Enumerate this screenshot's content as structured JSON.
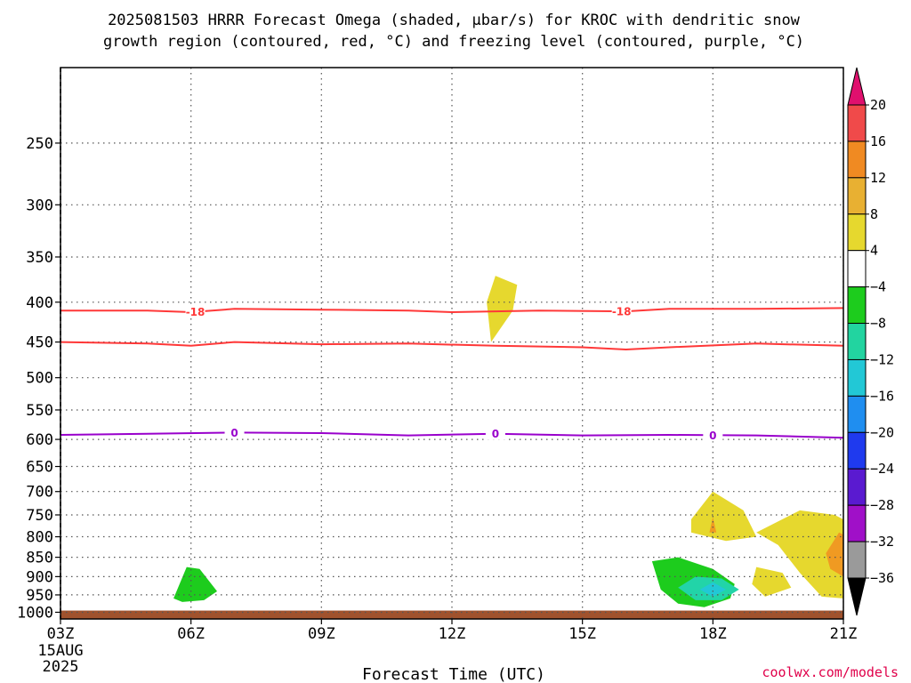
{
  "title": {
    "line1": "2025081503 HRRR Forecast Omega (shaded, μbar/s) for KROC with dendritic snow",
    "line2": "growth region (contoured, red, °C) and freezing level (contoured, purple, °C)"
  },
  "credit": "coolwx.com/models",
  "chart_data": {
    "type": "time-height",
    "title": "2025081503 HRRR Forecast Omega (shaded, μbar/s) for KROC with dendritic snow growth region (contoured, red, °C) and freezing level (contoured, purple, °C)",
    "xlabel": "Forecast Time (UTC)",
    "ylabel": "",
    "x_ticks": [
      {
        "hour": 3,
        "label": "03Z"
      },
      {
        "hour": 6,
        "label": "06Z"
      },
      {
        "hour": 9,
        "label": "09Z"
      },
      {
        "hour": 12,
        "label": "12Z"
      },
      {
        "hour": 15,
        "label": "15Z"
      },
      {
        "hour": 18,
        "label": "18Z"
      },
      {
        "hour": 21,
        "label": "21Z"
      }
    ],
    "x_date_label": [
      "15AUG",
      "2025"
    ],
    "xlim": [
      3,
      21
    ],
    "y_ticks": [
      250,
      300,
      350,
      400,
      450,
      500,
      550,
      600,
      650,
      700,
      750,
      800,
      850,
      900,
      950,
      1000
    ],
    "ylim_hpa": [
      1020,
      200
    ],
    "y_scale": "log-pressure",
    "grid": true,
    "contours": [
      {
        "name": "dendritic -18",
        "color": "#ff3838",
        "label": "-18",
        "label_hours": [
          6.1,
          15.9
        ],
        "points": [
          [
            3,
            410
          ],
          [
            5,
            410
          ],
          [
            6,
            412
          ],
          [
            7,
            408
          ],
          [
            9,
            409
          ],
          [
            11,
            410
          ],
          [
            12,
            412
          ],
          [
            14,
            410
          ],
          [
            16,
            411
          ],
          [
            17,
            408
          ],
          [
            19,
            408
          ],
          [
            21,
            407
          ]
        ]
      },
      {
        "name": "dendritic -12",
        "color": "#ff3838",
        "label": "",
        "label_hours": [],
        "points": [
          [
            3,
            450
          ],
          [
            5,
            452
          ],
          [
            6,
            455
          ],
          [
            7,
            450
          ],
          [
            9,
            453
          ],
          [
            11,
            452
          ],
          [
            13,
            455
          ],
          [
            15,
            457
          ],
          [
            16,
            460
          ],
          [
            17,
            457
          ],
          [
            19,
            452
          ],
          [
            21,
            455
          ]
        ]
      },
      {
        "name": "freezing level 0",
        "color": "#9900cc",
        "label": "0",
        "label_hours": [
          7,
          13,
          18
        ],
        "points": [
          [
            3,
            592
          ],
          [
            5,
            590
          ],
          [
            7,
            588
          ],
          [
            9,
            589
          ],
          [
            11,
            593
          ],
          [
            13,
            590
          ],
          [
            15,
            593
          ],
          [
            17,
            592
          ],
          [
            19,
            593
          ],
          [
            21,
            597
          ]
        ]
      }
    ],
    "omega_regions": [
      {
        "color": "#e6d82e",
        "points": [
          [
            13.0,
            370
          ],
          [
            13.5,
            380
          ],
          [
            13.4,
            410
          ],
          [
            12.9,
            450
          ],
          [
            12.8,
            400
          ]
        ]
      },
      {
        "color": "#e6d82e",
        "points": [
          [
            17.5,
            760
          ],
          [
            18.0,
            700
          ],
          [
            18.7,
            740
          ],
          [
            19.0,
            800
          ],
          [
            18.3,
            810
          ],
          [
            17.5,
            790
          ]
        ]
      },
      {
        "color": "#f09a22",
        "points": [
          [
            18.0,
            755
          ],
          [
            18.08,
            790
          ],
          [
            17.92,
            790
          ]
        ]
      },
      {
        "color": "#e6d82e",
        "points": [
          [
            19.0,
            790
          ],
          [
            20.0,
            740
          ],
          [
            20.8,
            750
          ],
          [
            21,
            760
          ],
          [
            21,
            960
          ],
          [
            20.5,
            955
          ],
          [
            20.0,
            890
          ],
          [
            19.5,
            820
          ]
        ]
      },
      {
        "color": "#f09a22",
        "points": [
          [
            20.6,
            840
          ],
          [
            20.9,
            790
          ],
          [
            21,
            795
          ],
          [
            21,
            900
          ],
          [
            20.7,
            880
          ]
        ]
      },
      {
        "color": "#e6d82e",
        "points": [
          [
            19.0,
            875
          ],
          [
            19.6,
            890
          ],
          [
            19.8,
            930
          ],
          [
            19.2,
            955
          ],
          [
            18.9,
            920
          ]
        ]
      },
      {
        "color": "#1dcc1d",
        "points": [
          [
            5.6,
            960
          ],
          [
            5.9,
            875
          ],
          [
            6.2,
            880
          ],
          [
            6.6,
            940
          ],
          [
            6.3,
            965
          ],
          [
            5.8,
            970
          ]
        ]
      },
      {
        "color": "#1dcc1d",
        "points": [
          [
            16.6,
            860
          ],
          [
            17.2,
            850
          ],
          [
            18.0,
            880
          ],
          [
            18.5,
            920
          ],
          [
            18.4,
            960
          ],
          [
            17.8,
            985
          ],
          [
            17.2,
            975
          ],
          [
            16.8,
            935
          ]
        ]
      },
      {
        "color": "#22d4a8",
        "points": [
          [
            17.2,
            930
          ],
          [
            17.6,
            900
          ],
          [
            18.2,
            905
          ],
          [
            18.6,
            935
          ],
          [
            18.2,
            965
          ],
          [
            17.6,
            965
          ]
        ]
      },
      {
        "color": "#22c8d6",
        "points": [
          [
            17.7,
            935
          ],
          [
            18.0,
            915
          ],
          [
            18.3,
            935
          ],
          [
            18.0,
            955
          ]
        ]
      }
    ],
    "ground_color": "#a0522d",
    "ground_top_hpa": 995,
    "colorbar": {
      "bins": [
        {
          "lo": 20,
          "hi": null,
          "color": "#e0106e"
        },
        {
          "lo": 16,
          "hi": 20,
          "color": "#f04a4a"
        },
        {
          "lo": 12,
          "hi": 16,
          "color": "#f08a22"
        },
        {
          "lo": 8,
          "hi": 12,
          "color": "#e8b032"
        },
        {
          "lo": 4,
          "hi": 8,
          "color": "#e6d82e"
        },
        {
          "lo": -4,
          "hi": 4,
          "color": "#ffffff"
        },
        {
          "lo": -8,
          "hi": -4,
          "color": "#1dcc1d"
        },
        {
          "lo": -12,
          "hi": -8,
          "color": "#22d4a0"
        },
        {
          "lo": -16,
          "hi": -12,
          "color": "#22c8d6"
        },
        {
          "lo": -20,
          "hi": -16,
          "color": "#1f8ef0"
        },
        {
          "lo": -24,
          "hi": -20,
          "color": "#1f3aee"
        },
        {
          "lo": -28,
          "hi": -24,
          "color": "#5a1ad0"
        },
        {
          "lo": -32,
          "hi": -28,
          "color": "#a010c8"
        },
        {
          "lo": -36,
          "hi": -32,
          "color": "#9a9a9a"
        },
        {
          "lo": null,
          "hi": -36,
          "color": "#000000"
        }
      ],
      "labels": [
        "20",
        "16",
        "12",
        "8",
        "4",
        "−4",
        "−8",
        "−12",
        "−16",
        "−20",
        "−24",
        "−28",
        "−32",
        "−36"
      ]
    }
  }
}
